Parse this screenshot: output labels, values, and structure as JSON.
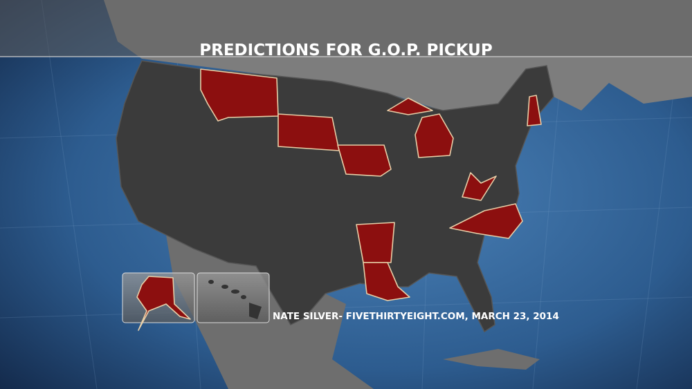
{
  "title": "PREDICTIONS FOR G.O.P. PICKUP",
  "credit": "NATE SILVER- FIVETHIRTYEIGHT.COM, MARCH 23, 2014"
}
